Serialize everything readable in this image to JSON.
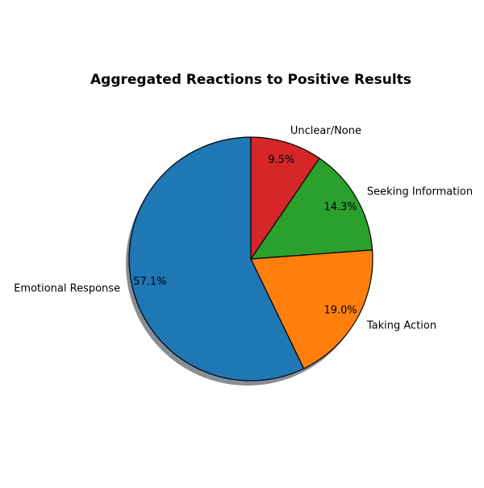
{
  "chart_data": {
    "type": "pie",
    "title": "Aggregated Reactions to Positive Results",
    "start_angle_deg": 90,
    "direction": "counterclockwise",
    "shadow": true,
    "edge_color": "#000000",
    "slices": [
      {
        "label": "Emotional Response",
        "value": 57.1,
        "pct_label": "57.1%",
        "color": "#1f77b4"
      },
      {
        "label": "Taking Action",
        "value": 19.0,
        "pct_label": "19.0%",
        "color": "#ff7f0e"
      },
      {
        "label": "Seeking Information",
        "value": 14.3,
        "pct_label": "14.3%",
        "color": "#2ca02c"
      },
      {
        "label": "Unclear/None",
        "value": 9.5,
        "pct_label": "9.5%",
        "color": "#d62728"
      }
    ]
  }
}
